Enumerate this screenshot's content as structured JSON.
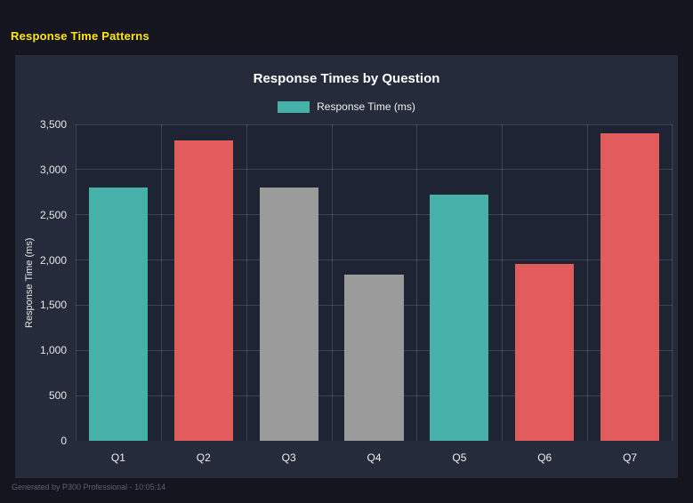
{
  "page": {
    "title": "Response Time Patterns",
    "footer": "Generated by P300 Professional - 10:05:14",
    "colors": {
      "background": "#15151f",
      "panel": "#252b3b",
      "plot": "#1e2433",
      "accent_yellow": "#ffe600"
    }
  },
  "chart_data": {
    "type": "bar",
    "title": "Response Times by Question",
    "xlabel": "",
    "ylabel": "Response Time (ms)",
    "legend": [
      {
        "label": "Response Time (ms)",
        "color": "#45b1a8"
      }
    ],
    "legend_position": "top",
    "categories": [
      "Q1",
      "Q2",
      "Q3",
      "Q4",
      "Q5",
      "Q6",
      "Q7"
    ],
    "values": [
      2800,
      3320,
      2805,
      1840,
      2725,
      1955,
      3400
    ],
    "bar_colors": [
      "#45b1a8",
      "#e25c5c",
      "#9b9b9b",
      "#9b9b9b",
      "#45b1a8",
      "#e25c5c",
      "#e25c5c"
    ],
    "ylim": [
      0,
      3500
    ],
    "yticks": [
      0,
      500,
      1000,
      1500,
      2000,
      2500,
      3000,
      3500
    ],
    "ytick_labels": [
      "0",
      "500",
      "1,000",
      "1,500",
      "2,000",
      "2,500",
      "3,000",
      "3,500"
    ],
    "grid": true
  }
}
